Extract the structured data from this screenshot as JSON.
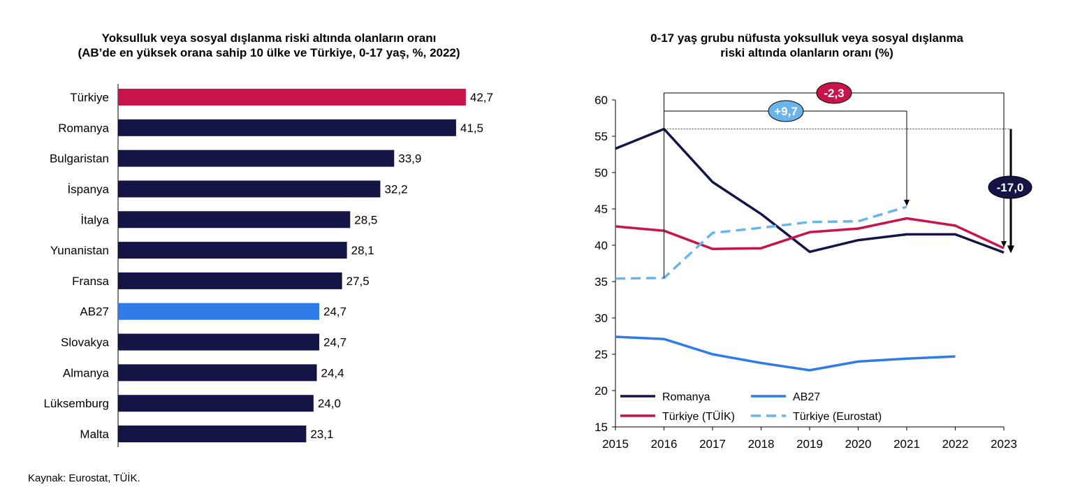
{
  "source": "Kaynak: Eurostat, TÜİK.",
  "colors": {
    "navy": "#141446",
    "turkey": "#c8144a",
    "eu": "#2f7be8",
    "eurostat": "#6ab4ec"
  },
  "chart_data": [
    {
      "type": "bar",
      "orientation": "horizontal",
      "title_lines": [
        "Yoksulluk veya sosyal dışlanma riski altında olanların oranı",
        "(AB’de en yüksek orana sahip 10 ülke ve Türkiye, 0-17 yaş, %, 2022)"
      ],
      "categories": [
        "Türkiye",
        "Romanya",
        "Bulgaristan",
        "İspanya",
        "İtalya",
        "Yunanistan",
        "Fransa",
        "AB27",
        "Slovakya",
        "Almanya",
        "Lüksemburg",
        "Malta"
      ],
      "values": [
        42.7,
        41.5,
        33.9,
        32.2,
        28.5,
        28.1,
        27.5,
        24.7,
        24.7,
        24.4,
        24.0,
        23.1
      ],
      "value_labels": [
        "42,7",
        "41,5",
        "33,9",
        "32,2",
        "28,5",
        "28,1",
        "27,5",
        "24,7",
        "24,7",
        "24,4",
        "24,0",
        "23,1"
      ],
      "bar_colors": [
        "#c8144a",
        "#141446",
        "#141446",
        "#141446",
        "#141446",
        "#141446",
        "#141446",
        "#2f7be8",
        "#141446",
        "#141446",
        "#141446",
        "#141446"
      ]
    },
    {
      "type": "line",
      "title_lines": [
        "0-17 yaş grubu nüfusta yoksulluk veya sosyal dışlanma",
        "riski altında olanların oranı (%)"
      ],
      "x": [
        "2015",
        "2016",
        "2017",
        "2018",
        "2019",
        "2020",
        "2021",
        "2022",
        "2023"
      ],
      "ylim": [
        15,
        60
      ],
      "yticks": [
        15,
        20,
        25,
        30,
        35,
        40,
        45,
        50,
        55,
        60
      ],
      "series": [
        {
          "name": "Romanya",
          "color": "#141446",
          "dashed": false,
          "values": [
            53.3,
            56.0,
            48.7,
            44.3,
            39.1,
            40.7,
            41.5,
            41.5,
            39.0
          ]
        },
        {
          "name": "AB27",
          "color": "#2f7be8",
          "dashed": false,
          "values": [
            27.4,
            27.1,
            25.0,
            23.8,
            22.8,
            24.0,
            24.4,
            24.7,
            null
          ]
        },
        {
          "name": "Türkiye (TÜİK)",
          "color": "#c8144a",
          "dashed": false,
          "values": [
            42.6,
            42.0,
            39.5,
            39.6,
            41.8,
            42.3,
            43.7,
            42.7,
            39.6
          ]
        },
        {
          "name": "Türkiye (Eurostat)",
          "color": "#6ab4ec",
          "dashed": true,
          "values": [
            35.4,
            35.5,
            41.7,
            42.4,
            43.2,
            43.3,
            45.3,
            null,
            null
          ]
        }
      ],
      "annotations": [
        {
          "label": "-2,3",
          "from_year": "2016",
          "to_year": "2023",
          "color": "#c8144a"
        },
        {
          "label": "+9,7",
          "from_year": "2016",
          "to_year": "2021",
          "color": "#6ab4ec"
        },
        {
          "label": "-17,0",
          "from_year": "2016",
          "to_year": "2023",
          "color": "#141446"
        }
      ]
    }
  ]
}
